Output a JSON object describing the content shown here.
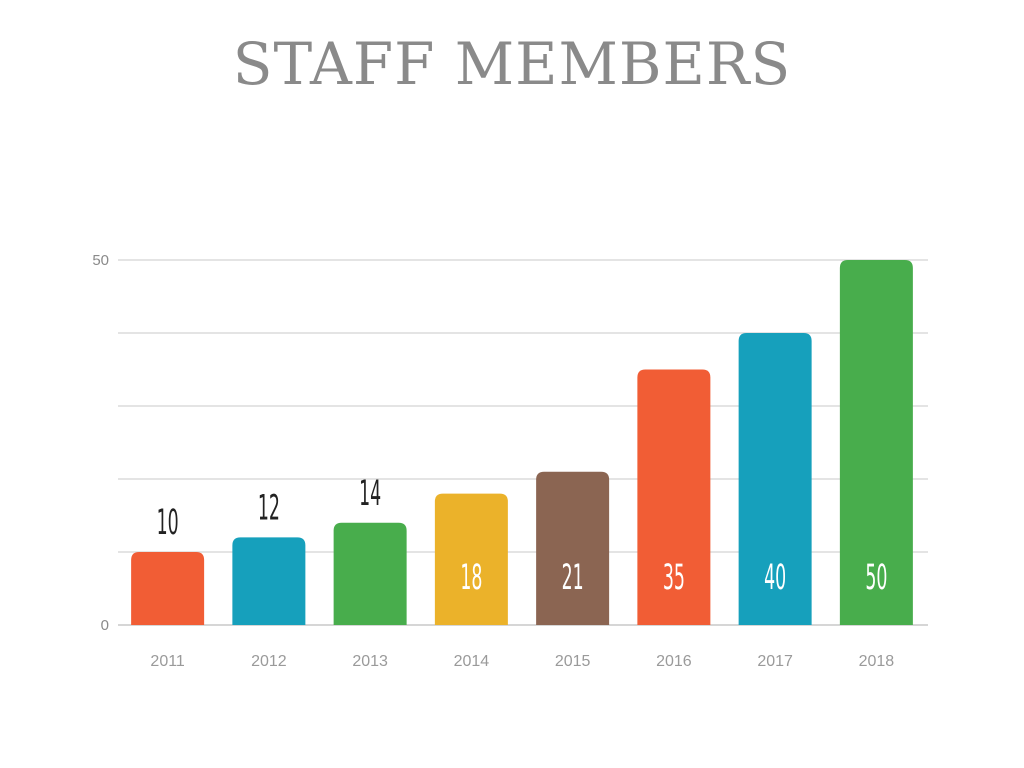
{
  "chart_data": {
    "type": "bar",
    "title": "STAFF MEMBERS",
    "xlabel": "",
    "ylabel": "",
    "categories": [
      "2011",
      "2012",
      "2013",
      "2014",
      "2015",
      "2016",
      "2017",
      "2018"
    ],
    "values": [
      10,
      12,
      14,
      18,
      21,
      35,
      40,
      50
    ],
    "data_labels": [
      "10",
      "12",
      "14",
      "18",
      "21",
      "35",
      "40",
      "50"
    ],
    "colors": [
      "#f15d35",
      "#16a0bc",
      "#48ad4c",
      "#ebb22a",
      "#8b6552",
      "#f15d35",
      "#16a0bc",
      "#48ad4c"
    ],
    "label_inside": [
      false,
      false,
      false,
      true,
      true,
      true,
      true,
      true
    ],
    "ylim": [
      0,
      50
    ],
    "yticks": [
      {
        "value": 0,
        "label": "0"
      },
      {
        "value": 50,
        "label": "50"
      }
    ],
    "gridlines": [
      10,
      20,
      30,
      40,
      50
    ],
    "grid": true,
    "legend": "none"
  }
}
